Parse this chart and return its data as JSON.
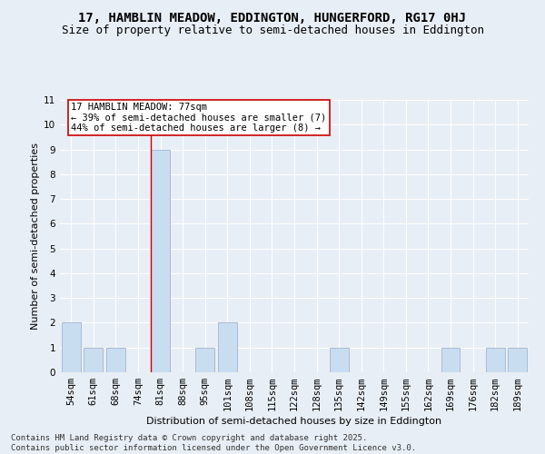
{
  "title_line1": "17, HAMBLIN MEADOW, EDDINGTON, HUNGERFORD, RG17 0HJ",
  "title_line2": "Size of property relative to semi-detached houses in Eddington",
  "xlabel": "Distribution of semi-detached houses by size in Eddington",
  "ylabel": "Number of semi-detached properties",
  "categories": [
    "54sqm",
    "61sqm",
    "68sqm",
    "74sqm",
    "81sqm",
    "88sqm",
    "95sqm",
    "101sqm",
    "108sqm",
    "115sqm",
    "122sqm",
    "128sqm",
    "135sqm",
    "142sqm",
    "149sqm",
    "155sqm",
    "162sqm",
    "169sqm",
    "176sqm",
    "182sqm",
    "189sqm"
  ],
  "values": [
    2,
    1,
    1,
    0,
    9,
    0,
    1,
    2,
    0,
    0,
    0,
    0,
    1,
    0,
    0,
    0,
    0,
    1,
    0,
    1,
    1
  ],
  "highlight_index": 4,
  "normal_bar_color": "#c9ddf0",
  "bar_edge_color": "#aabbd4",
  "highlight_line_color": "#cc0000",
  "ylim": [
    0,
    11
  ],
  "yticks": [
    0,
    1,
    2,
    3,
    4,
    5,
    6,
    7,
    8,
    9,
    10,
    11
  ],
  "annotation_text": "17 HAMBLIN MEADOW: 77sqm\n← 39% of semi-detached houses are smaller (7)\n44% of semi-detached houses are larger (8) →",
  "annotation_box_color": "#ffffff",
  "annotation_box_edgecolor": "#cc0000",
  "footer_text": "Contains HM Land Registry data © Crown copyright and database right 2025.\nContains public sector information licensed under the Open Government Licence v3.0.",
  "bg_color": "#e8eef5",
  "grid_color": "#ffffff",
  "title_fontsize": 10,
  "subtitle_fontsize": 9,
  "axis_label_fontsize": 8,
  "tick_fontsize": 7.5,
  "annotation_fontsize": 7.5,
  "footer_fontsize": 6.5
}
